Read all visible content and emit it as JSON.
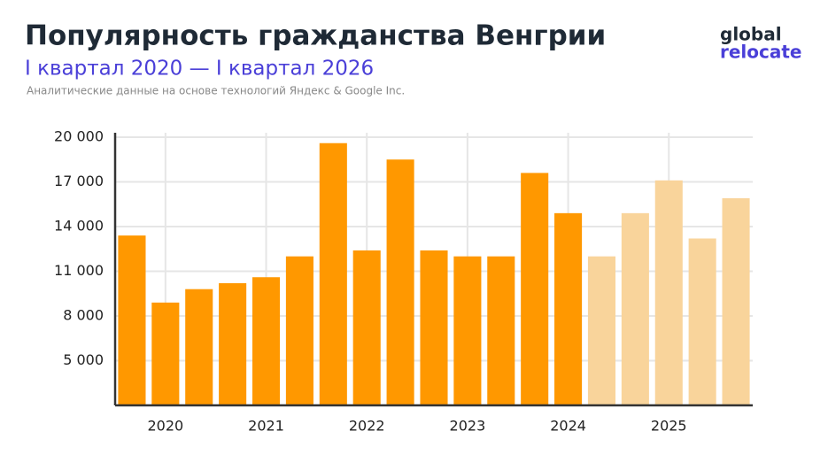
{
  "chart_data": {
    "type": "bar",
    "title": "Популярность гражданства Венгрии",
    "subtitle": "I квартал 2020 — I квартал 2026",
    "source": "Аналитические данные на основе технологий Яндекс & Google Inc.",
    "logo": [
      "global",
      "relocate"
    ],
    "categories": [
      null,
      "2020",
      null,
      null,
      "2021",
      null,
      null,
      "2022",
      null,
      null,
      "2023",
      null,
      null,
      "2024",
      null,
      null,
      "2025",
      null,
      null
    ],
    "values": [
      13400,
      8900,
      9800,
      10200,
      10600,
      12000,
      19600,
      12400,
      18500,
      12400,
      12000,
      12000,
      17600,
      14900,
      12000,
      14900,
      17100,
      13200,
      15900
    ],
    "colors": [
      "#ff9800",
      "#ff9800",
      "#ff9800",
      "#ff9800",
      "#ff9800",
      "#ff9800",
      "#ff9800",
      "#ff9800",
      "#ff9800",
      "#ff9800",
      "#ff9800",
      "#ff9800",
      "#ff9800",
      "#ff9800",
      "#f9d49b",
      "#f9d49b",
      "#f9d49b",
      "#f9d49b",
      "#f9d49b"
    ],
    "ylim": [
      2000,
      20000
    ],
    "yticks": [
      {
        "value": 5000,
        "label": "5 000"
      },
      {
        "value": 8000,
        "label": "8 000"
      },
      {
        "value": 11000,
        "label": "11 000"
      },
      {
        "value": 14000,
        "label": "14 000"
      },
      {
        "value": 17000,
        "label": "17 000"
      },
      {
        "value": 20000,
        "label": "20 000"
      }
    ],
    "grid": true
  }
}
